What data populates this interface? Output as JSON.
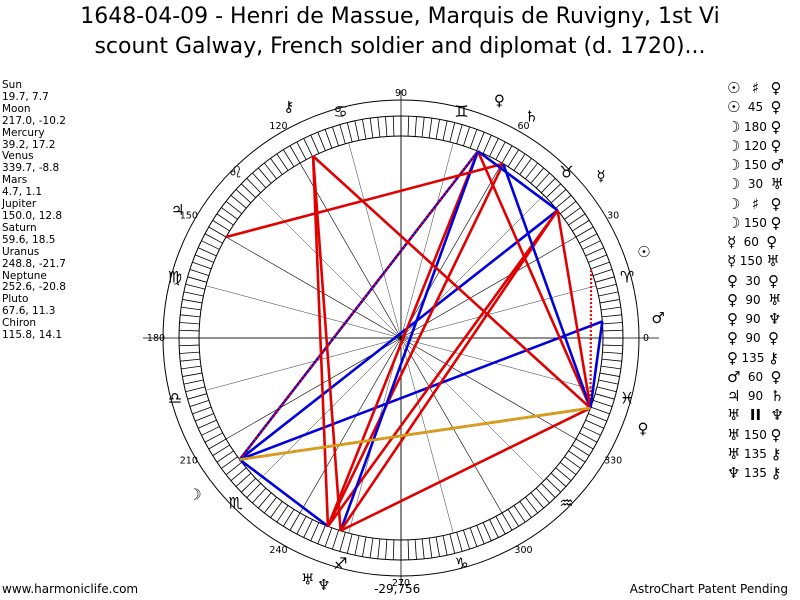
{
  "title": {
    "line1": "1648-04-09 - Henri de Massue, Marquis de Ruvigny, 1st Vi",
    "line2": "scount Galway, French soldier and diplomat (d. 1720)..."
  },
  "positions": [
    {
      "name": "Sun",
      "value": "19.7, 7.7"
    },
    {
      "name": "Moon",
      "value": "217.0, -10.2"
    },
    {
      "name": "Mercury",
      "value": "39.2, 17.2"
    },
    {
      "name": "Venus",
      "value": "339.7, -8.8"
    },
    {
      "name": "Mars",
      "value": "4.7, 1.1"
    },
    {
      "name": "Jupiter",
      "value": "150.0, 12.8"
    },
    {
      "name": "Saturn",
      "value": "59.6, 18.5"
    },
    {
      "name": "Uranus",
      "value": "248.8, -21.7"
    },
    {
      "name": "Neptune",
      "value": "252.6, -20.8"
    },
    {
      "name": "Pluto",
      "value": "67.6, 11.3"
    },
    {
      "name": "Chiron",
      "value": "115.8, 14.1"
    }
  ],
  "aspects": [
    {
      "p1": "☉",
      "sym": "♯",
      "p2": "♀"
    },
    {
      "p1": "☉",
      "sym": "45",
      "p2": "♀"
    },
    {
      "p1": "☽",
      "sym": "180",
      "p2": "♀"
    },
    {
      "p1": "☽",
      "sym": "120",
      "p2": "♀"
    },
    {
      "p1": "☽",
      "sym": "150",
      "p2": "♂"
    },
    {
      "p1": "☽",
      "sym": "30",
      "p2": "♅"
    },
    {
      "p1": "☽",
      "sym": "♯",
      "p2": "♀"
    },
    {
      "p1": "☽",
      "sym": "150",
      "p2": "♀"
    },
    {
      "p1": "☿",
      "sym": "60",
      "p2": "♀"
    },
    {
      "p1": "☿",
      "sym": "150",
      "p2": "♅"
    },
    {
      "p1": "♀",
      "sym": "30",
      "p2": "♀"
    },
    {
      "p1": "♀",
      "sym": "90",
      "p2": "♅"
    },
    {
      "p1": "♀",
      "sym": "90",
      "p2": "♆"
    },
    {
      "p1": "♀",
      "sym": "90",
      "p2": "♀"
    },
    {
      "p1": "♀",
      "sym": "135",
      "p2": "⚷"
    },
    {
      "p1": "♂",
      "sym": "60",
      "p2": "♀"
    },
    {
      "p1": "♃",
      "sym": "90",
      "p2": "♄"
    },
    {
      "p1": "♅",
      "sym": "II",
      "p2": "♆"
    },
    {
      "p1": "♅",
      "sym": "150",
      "p2": "♀"
    },
    {
      "p1": "♅",
      "sym": "135",
      "p2": "⚷"
    },
    {
      "p1": "♆",
      "sym": "135",
      "p2": "⚷"
    }
  ],
  "degree_labels": [
    "0",
    "30",
    "60",
    "90",
    "120",
    "150",
    "180",
    "210",
    "240",
    "270",
    "300",
    "330"
  ],
  "sign_glyphs": [
    "♈",
    "♉",
    "♊",
    "♋",
    "♌",
    "♍",
    "♎",
    "♏",
    "♐",
    "♑",
    "♒",
    "♓"
  ],
  "planet_glyphs": [
    {
      "name": "sun",
      "glyph": "☉",
      "lon": 19.7
    },
    {
      "name": "moon",
      "glyph": "☽",
      "lon": 217.0
    },
    {
      "name": "mercury",
      "glyph": "☿",
      "lon": 39.2
    },
    {
      "name": "venus",
      "glyph": "♀",
      "lon": 339.7
    },
    {
      "name": "mars",
      "glyph": "♂",
      "lon": 4.7
    },
    {
      "name": "jupiter",
      "glyph": "♃",
      "lon": 150.0
    },
    {
      "name": "saturn",
      "glyph": "♄",
      "lon": 59.6
    },
    {
      "name": "uranus",
      "glyph": "♅",
      "lon": 248.8
    },
    {
      "name": "neptune",
      "glyph": "♆",
      "lon": 252.6
    },
    {
      "name": "pluto",
      "glyph": "♀",
      "lon": 67.6
    },
    {
      "name": "chiron",
      "glyph": "⚷",
      "lon": 115.8
    }
  ],
  "aspect_lines": [
    {
      "from": 217.0,
      "to": 339.7,
      "color": "#e00000"
    },
    {
      "from": 217.0,
      "to": 67.6,
      "color": "#0000dd"
    },
    {
      "from": 217.0,
      "to": 39.2,
      "color": "#0000dd"
    },
    {
      "from": 217.0,
      "to": 4.7,
      "color": "#0000dd"
    },
    {
      "from": 217.0,
      "to": 248.8,
      "color": "#0000dd"
    },
    {
      "from": 217.0,
      "to": 67.6,
      "color": "#e00000",
      "dotted": true
    },
    {
      "from": 248.8,
      "to": 67.6,
      "color": "#e00000"
    },
    {
      "from": 248.8,
      "to": 59.6,
      "color": "#e00000"
    },
    {
      "from": 248.8,
      "to": 39.2,
      "color": "#e00000"
    },
    {
      "from": 248.8,
      "to": 115.8,
      "color": "#e00000"
    },
    {
      "from": 252.6,
      "to": 67.6,
      "color": "#0000dd"
    },
    {
      "from": 252.6,
      "to": 339.7,
      "color": "#e00000"
    },
    {
      "from": 252.6,
      "to": 115.8,
      "color": "#e00000"
    },
    {
      "from": 252.6,
      "to": 39.2,
      "color": "#e00000"
    },
    {
      "from": 150.0,
      "to": 59.6,
      "color": "#e00000"
    },
    {
      "from": 67.6,
      "to": 339.7,
      "color": "#e00000"
    },
    {
      "from": 67.6,
      "to": 39.2,
      "color": "#0000dd"
    },
    {
      "from": 59.6,
      "to": 339.7,
      "color": "#0000dd"
    },
    {
      "from": 115.8,
      "to": 339.7,
      "color": "#e00000"
    },
    {
      "from": 339.7,
      "to": 39.2,
      "color": "#e00000"
    },
    {
      "from": 339.7,
      "to": 19.7,
      "color": "#e00000",
      "dotted": true
    },
    {
      "from": 339.7,
      "to": 4.7,
      "color": "#0000dd"
    },
    {
      "from": 217.0,
      "to": 339.7,
      "color": "#d4a017"
    }
  ],
  "footer": {
    "left": "www.harmoniclife.com",
    "middle": "-29,756",
    "right": "AstroChart Patent Pending"
  }
}
